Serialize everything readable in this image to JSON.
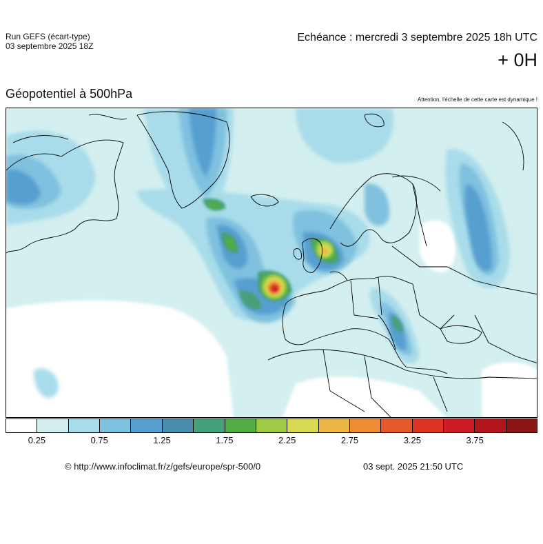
{
  "header": {
    "run_name": "Run GEFS (écart-type)",
    "run_date": "03 septembre 2025 18Z",
    "valid_time": "Echéance : mercredi 3 septembre 2025 18h UTC",
    "lead_time": "+ 0H"
  },
  "map": {
    "title": "Géopotentiel à 500hPa",
    "notice": "Attention, l'échelle de cette carte est dynamique !"
  },
  "legend": {
    "colors": [
      "#ffffff",
      "#d3efef",
      "#a9dcea",
      "#7fc1df",
      "#579fd0",
      "#4b8cab",
      "#46a079",
      "#52ad45",
      "#9ecb45",
      "#d8db52",
      "#edb746",
      "#ef8a35",
      "#e6592a",
      "#dc3327",
      "#cc1c26",
      "#b3151c",
      "#8a1515"
    ],
    "tick_labels": [
      "0.25",
      "0.75",
      "1.25",
      "1.75",
      "2.25",
      "2.75",
      "3.25",
      "3.75"
    ]
  },
  "footer": {
    "url": "© http://www.infoclimat.fr/z/gefs/europe/spr-500/0",
    "generated": "03 sept. 2025 21:50 UTC"
  }
}
